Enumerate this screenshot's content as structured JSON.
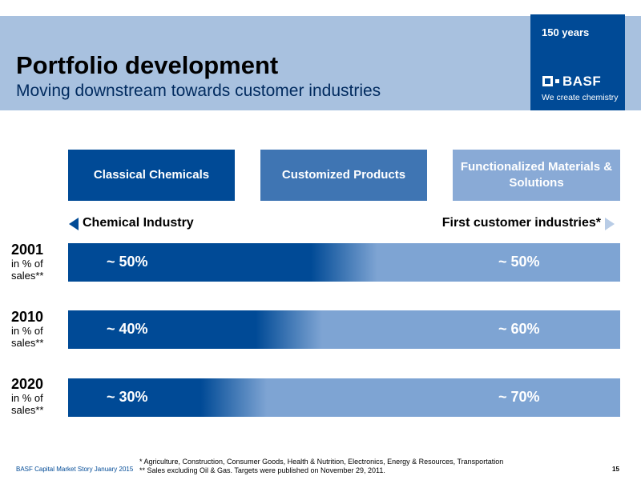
{
  "header": {
    "title": "Portfolio development",
    "subtitle": "Moving downstream towards customer industries"
  },
  "logo": {
    "years": "150 years",
    "name": "BASF",
    "tagline": "We create chemistry",
    "icon": "basf-logo-icon"
  },
  "segments": [
    {
      "label": "Classical Chemicals",
      "color": "#004a96"
    },
    {
      "label": "Customized Products",
      "color": "#3f75b3"
    },
    {
      "label": "Functionalized Materials & Solutions",
      "color": "#89aad6"
    }
  ],
  "direction": {
    "left": "Chemical Industry",
    "right": "First customer industries*",
    "left_arrow_icon": "arrow-left-icon",
    "right_arrow_icon": "arrow-right-icon"
  },
  "rows": [
    {
      "year": "2001",
      "sub1": "in % of",
      "sub2": "sales**",
      "left": "~ 50%",
      "right": "~ 50%",
      "chemical_share": 0.5
    },
    {
      "year": "2010",
      "sub1": "in % of",
      "sub2": "sales**",
      "left": "~ 40%",
      "right": "~ 60%",
      "chemical_share": 0.4
    },
    {
      "year": "2020",
      "sub1": "in % of",
      "sub2": "sales**",
      "left": "~ 30%",
      "right": "~ 70%",
      "chemical_share": 0.3
    }
  ],
  "colors": {
    "dark_blue": "#004a96",
    "light_blue": "#7ea4d3",
    "header_band": "#a8c1df"
  },
  "footnotes": {
    "line1": "*  Agriculture, Construction, Consumer Goods, Health & Nutrition, Electronics, Energy & Resources, Transportation",
    "line2": "** Sales excluding Oil & Gas. Targets were published on November 29, 2011."
  },
  "footer": {
    "left": "BASF Capital Market Story January 2015",
    "page": "15"
  }
}
